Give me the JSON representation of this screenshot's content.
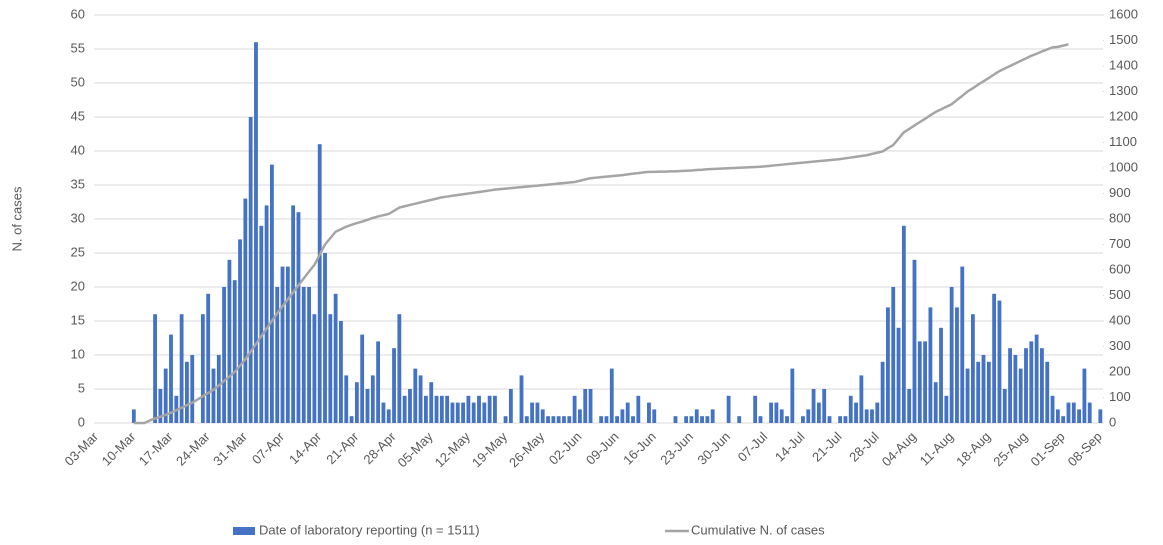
{
  "chart_data": {
    "type": "bar",
    "y_label": "N. of cases",
    "categories": [
      "03-Mar",
      null,
      null,
      null,
      null,
      null,
      null,
      "10-Mar",
      null,
      null,
      null,
      null,
      null,
      null,
      "17-Mar",
      null,
      null,
      null,
      null,
      null,
      null,
      "24-Mar",
      null,
      null,
      null,
      null,
      null,
      null,
      "31-Mar",
      null,
      null,
      null,
      null,
      null,
      null,
      "07-Apr",
      null,
      null,
      null,
      null,
      null,
      null,
      "14-Apr",
      null,
      null,
      null,
      null,
      null,
      null,
      "21-Apr",
      null,
      null,
      null,
      null,
      null,
      null,
      "28-Apr",
      null,
      null,
      null,
      null,
      null,
      null,
      "05-May",
      null,
      null,
      null,
      null,
      null,
      null,
      "12-May",
      null,
      null,
      null,
      null,
      null,
      null,
      "19-May",
      null,
      null,
      null,
      null,
      null,
      null,
      "26-May",
      null,
      null,
      null,
      null,
      null,
      null,
      "02-Jun",
      null,
      null,
      null,
      null,
      null,
      null,
      "09-Jun",
      null,
      null,
      null,
      null,
      null,
      null,
      "16-Jun",
      null,
      null,
      null,
      null,
      null,
      null,
      "23-Jun",
      null,
      null,
      null,
      null,
      null,
      null,
      "30-Jun",
      null,
      null,
      null,
      null,
      null,
      null,
      "07-Jul",
      null,
      null,
      null,
      null,
      null,
      null,
      "14-Jul",
      null,
      null,
      null,
      null,
      null,
      null,
      "21-Jul",
      null,
      null,
      null,
      null,
      null,
      null,
      "28-Jul",
      null,
      null,
      null,
      null,
      null,
      null,
      "04-Aug",
      null,
      null,
      null,
      null,
      null,
      null,
      "11-Aug",
      null,
      null,
      null,
      null,
      null,
      null,
      "18-Aug",
      null,
      null,
      null,
      null,
      null,
      null,
      "25-Aug",
      null,
      null,
      null,
      null,
      null,
      null,
      "01-Sep",
      null,
      null,
      null,
      null,
      null,
      null,
      "08-Sep"
    ],
    "series": [
      {
        "name": "Date of laboratory reporting (n = 1511)",
        "type": "bar",
        "color": "#4472c4",
        "values": [
          0,
          0,
          0,
          0,
          0,
          0,
          0,
          2,
          0,
          0,
          0,
          16,
          5,
          8,
          13,
          4,
          16,
          9,
          10,
          0,
          16,
          19,
          8,
          10,
          20,
          24,
          21,
          27,
          33,
          45,
          56,
          29,
          32,
          38,
          20,
          23,
          23,
          32,
          31,
          20,
          20,
          16,
          41,
          25,
          16,
          19,
          15,
          7,
          1,
          6,
          13,
          5,
          7,
          12,
          3,
          2,
          11,
          16,
          4,
          5,
          8,
          7,
          4,
          6,
          4,
          4,
          4,
          3,
          3,
          3,
          4,
          3,
          4,
          3,
          4,
          4,
          0,
          1,
          5,
          0,
          7,
          1,
          3,
          3,
          2,
          1,
          1,
          1,
          1,
          1,
          4,
          2,
          5,
          5,
          0,
          1,
          1,
          8,
          1,
          2,
          3,
          1,
          4,
          0,
          3,
          2,
          0,
          0,
          0,
          1,
          0,
          1,
          1,
          2,
          1,
          1,
          2,
          0,
          0,
          4,
          0,
          1,
          0,
          0,
          4,
          1,
          0,
          3,
          3,
          2,
          1,
          8,
          0,
          1,
          2,
          5,
          3,
          5,
          1,
          0,
          1,
          1,
          4,
          3,
          7,
          2,
          2,
          3,
          9,
          17,
          20,
          14,
          29,
          5,
          24,
          12,
          12,
          17,
          6,
          14,
          4,
          20,
          17,
          23,
          8,
          16,
          9,
          10,
          9,
          19,
          18,
          5,
          11,
          10,
          8,
          11,
          12,
          13,
          11,
          9,
          4,
          2,
          1,
          3,
          3,
          2,
          8,
          3,
          0,
          2
        ]
      },
      {
        "name": "Cumulative N. of cases",
        "type": "line",
        "axis": "y2",
        "color": "#a5a5a5",
        "values": [
          null,
          null,
          null,
          null,
          null,
          null,
          null,
          0,
          0,
          0,
          10,
          18,
          25,
          32,
          40,
          50,
          60,
          70,
          80,
          92,
          105,
          118,
          130,
          147,
          165,
          182,
          200,
          225,
          250,
          280,
          310,
          340,
          370,
          400,
          430,
          458,
          485,
          512,
          540,
          567,
          594,
          620,
          660,
          700,
          725,
          750,
          760,
          770,
          777,
          784,
          790,
          797,
          804,
          810,
          815,
          820,
          832,
          845,
          850,
          855,
          860,
          865,
          870,
          875,
          880,
          885,
          888,
          891,
          894,
          897,
          900,
          903,
          906,
          909,
          912,
          915,
          917,
          919,
          921,
          923,
          925,
          927,
          929,
          931,
          933,
          935,
          937,
          939,
          941,
          943,
          945,
          950,
          955,
          960,
          962,
          964,
          966,
          968,
          970,
          972,
          975,
          978,
          980,
          983,
          985,
          985,
          986,
          986,
          987,
          987,
          988,
          989,
          990,
          992,
          993,
          995,
          996,
          997,
          998,
          999,
          1000,
          1001,
          1002,
          1003,
          1004,
          1005,
          1007,
          1009,
          1011,
          1013,
          1015,
          1017,
          1019,
          1021,
          1023,
          1025,
          1027,
          1029,
          1031,
          1033,
          1035,
          1038,
          1041,
          1044,
          1047,
          1050,
          1055,
          1060,
          1065,
          1078,
          1090,
          1115,
          1140,
          1153,
          1167,
          1180,
          1193,
          1207,
          1220,
          1230,
          1240,
          1250,
          1267,
          1283,
          1300,
          1313,
          1327,
          1340,
          1353,
          1367,
          1380,
          1390,
          1400,
          1410,
          1420,
          1430,
          1440,
          1448,
          1457,
          1465,
          1473,
          1475,
          1480,
          1485,
          null,
          null,
          null,
          null,
          null,
          null
        ]
      }
    ],
    "ylim": [
      0,
      60
    ],
    "yticks": [
      0,
      5,
      10,
      15,
      20,
      25,
      30,
      35,
      40,
      45,
      50,
      55,
      60
    ],
    "y2lim": [
      0,
      1600
    ],
    "y2ticks": [
      0,
      100,
      200,
      300,
      400,
      500,
      600,
      700,
      800,
      900,
      1000,
      1100,
      1200,
      1300,
      1400,
      1500,
      1600
    ],
    "grid": true,
    "legend": "bottom"
  }
}
